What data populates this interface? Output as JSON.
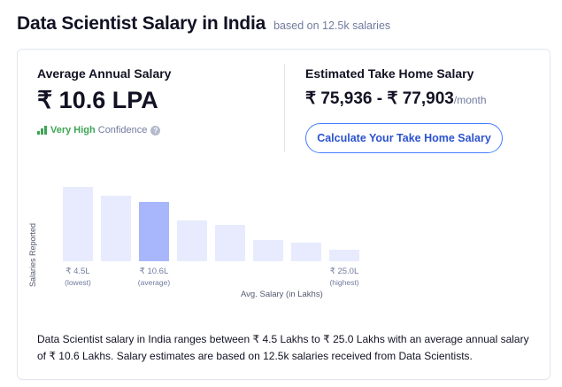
{
  "header": {
    "title": "Data Scientist Salary in India",
    "subtitle": "based on 12.5k salaries"
  },
  "average": {
    "title": "Average Annual Salary",
    "value": "₹ 10.6 LPA",
    "confidence_level": "Very High",
    "confidence_label": "Confidence",
    "help_glyph": "?",
    "confidence_color": "#3ea556"
  },
  "take_home": {
    "title": "Estimated Take Home Salary",
    "range": "₹ 75,936 - ₹ 77,903",
    "period": "/month",
    "button_label": "Calculate Your Take Home Salary",
    "button_color": "#457eff"
  },
  "chart_data": {
    "type": "bar",
    "ylabel": "Salaries Reported",
    "xlabel": "Avg. Salary (in Lakhs)",
    "values": [
      100,
      88,
      80,
      55,
      49,
      28,
      25,
      15
    ],
    "highlight_index": 2,
    "ticks": [
      {
        "index": 0,
        "label": "₹ 4.5L",
        "caption": "(lowest)"
      },
      {
        "index": 2,
        "label": "₹ 10.6L",
        "caption": "(average)"
      },
      {
        "index": 7,
        "label": "₹ 25.0L",
        "caption": "(highest)"
      }
    ],
    "bar_color": "#e7ebfd",
    "highlight_color": "#a8b7fc"
  },
  "description": "Data Scientist salary in India ranges between ₹ 4.5 Lakhs to ₹ 25.0 Lakhs with an average annual salary of ₹ 10.6 Lakhs. Salary estimates are based on 12.5k salaries received from Data Scientists."
}
